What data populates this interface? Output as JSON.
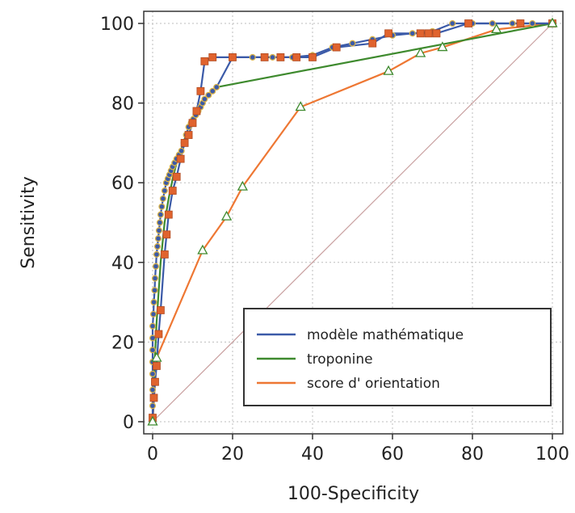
{
  "chart_data": {
    "type": "line",
    "xlabel": "100-Specificity",
    "ylabel": "Sensitivity",
    "xlim": [
      0,
      100
    ],
    "ylim": [
      0,
      100
    ],
    "xticks": [
      0,
      20,
      40,
      60,
      80,
      100
    ],
    "yticks": [
      0,
      20,
      40,
      60,
      80,
      100
    ],
    "grid": true,
    "legend_position": "bottom-right",
    "reference_line": {
      "x": [
        0,
        100
      ],
      "y": [
        0,
        100
      ],
      "color": "#c9a0a0"
    },
    "series": [
      {
        "name": "modèle mathématique",
        "color": "#3b5aa8",
        "marker": "circle",
        "marker_fill": "#3b5aa8",
        "marker_edge": "#d9b34a",
        "x": [
          0,
          0,
          0,
          0,
          0,
          0,
          0,
          0,
          0.2,
          0.3,
          0.5,
          0.6,
          0.8,
          1,
          1.2,
          1.4,
          1.6,
          1.8,
          2,
          2.3,
          2.6,
          3,
          3.4,
          3.8,
          4.2,
          4.6,
          5,
          5.5,
          6,
          6.6,
          7.2,
          7.8,
          8.4,
          9,
          9.6,
          10.2,
          10.8,
          11.4,
          12,
          12.5,
          13,
          14,
          15,
          16,
          20,
          25,
          30,
          35,
          40,
          45,
          50,
          55,
          60,
          65,
          70,
          75,
          80,
          85,
          90,
          95,
          100
        ],
        "y": [
          0,
          4,
          8,
          12,
          15,
          18,
          21,
          24,
          27,
          30,
          33,
          36,
          39,
          42,
          44,
          46,
          48,
          50,
          52,
          54,
          56,
          58,
          60,
          61,
          62,
          63,
          64,
          65,
          66,
          67,
          68,
          70,
          72,
          74,
          75,
          76,
          77,
          78,
          79,
          80,
          81,
          82,
          83,
          84,
          91.5,
          91.5,
          91.5,
          91.5,
          92,
          94,
          95,
          96,
          97,
          97.5,
          98,
          100,
          100,
          100,
          100,
          100,
          100
        ]
      },
      {
        "name": "troponine",
        "color": "#3e8a2e",
        "marker": "none",
        "x": [
          0,
          0.5,
          1,
          2,
          3,
          4,
          5,
          6,
          7,
          8,
          9,
          10,
          12,
          14,
          16,
          100
        ],
        "y": [
          0,
          15,
          25,
          40,
          50,
          56,
          61,
          65,
          68,
          71,
          74,
          76,
          79,
          82,
          84,
          100
        ]
      },
      {
        "name": "score d' orientation",
        "color": "#ee7733",
        "marker": "triangle",
        "x": [
          0,
          1,
          12.5,
          18.5,
          22.5,
          37,
          59,
          67,
          72.5,
          86,
          100
        ],
        "y": [
          0,
          16,
          43,
          51.5,
          59,
          79,
          88,
          92.5,
          94,
          98.5,
          100
        ]
      }
    ],
    "extra_series": [
      {
        "name": "",
        "color": "#3b5aa8",
        "marker": "square",
        "marker_fill": "#e0632e",
        "x": [
          0,
          0.3,
          0.6,
          1,
          1.5,
          2,
          3,
          3.5,
          4,
          5,
          6,
          7,
          8,
          9,
          10,
          11,
          12,
          13,
          15,
          20,
          28,
          32,
          36,
          40,
          46,
          55,
          59,
          67,
          69,
          71,
          79,
          92,
          100
        ],
        "y": [
          1,
          6,
          10,
          14,
          22,
          28,
          42,
          47,
          52,
          58,
          61.5,
          66,
          70,
          72,
          75,
          78,
          83,
          90.5,
          91.5,
          91.5,
          91.5,
          91.5,
          91.5,
          91.5,
          94,
          95,
          97.5,
          97.5,
          97.5,
          97.5,
          100,
          100,
          100
        ]
      }
    ]
  }
}
